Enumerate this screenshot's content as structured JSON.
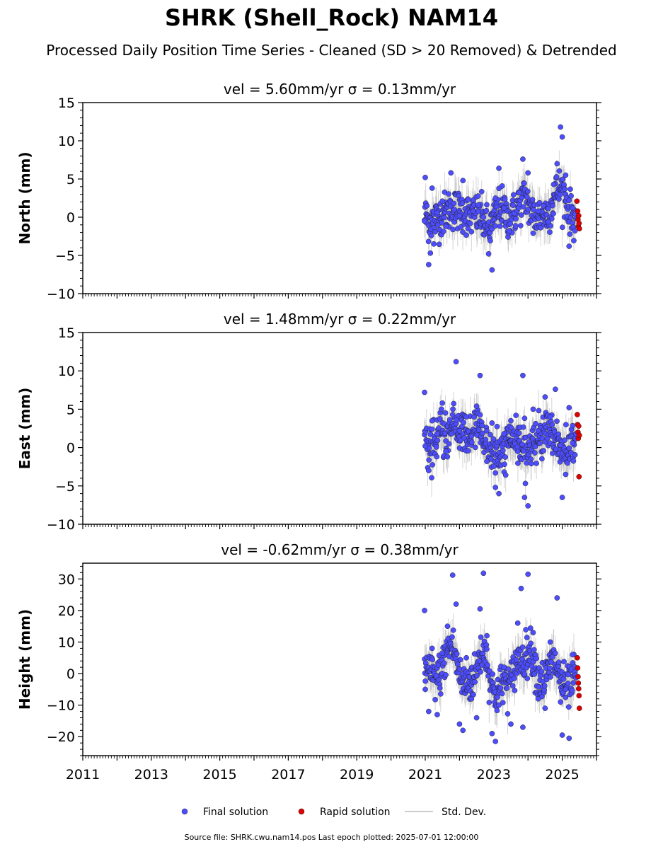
{
  "header": {
    "title": "SHRK (Shell_Rock) NAM14",
    "subtitle": "Processed Daily Position Time Series - Cleaned (SD > 20 Removed) & Detrended"
  },
  "legend": {
    "final": "Final solution",
    "rapid": "Rapid solution",
    "std": "Std. Dev."
  },
  "footer": {
    "text": "Source file: SHRK.cwu.nam14.pos  Last epoch plotted: 2025-07-01 12:00:00"
  },
  "colors": {
    "final": "#4d4dff",
    "rapid": "#e00000",
    "std": "#b0b0b0"
  },
  "chart_data": [
    {
      "type": "scatter",
      "title": "vel = 5.60mm/yr   σ = 0.13mm/yr",
      "ylabel": "North (mm)",
      "xlim": [
        2011,
        2026
      ],
      "ylim": [
        -10,
        15
      ],
      "yticks": [
        -10,
        -5,
        0,
        5,
        10,
        15
      ],
      "yminor": 1,
      "x_major_ticks": [
        2011,
        2013,
        2015,
        2017,
        2019,
        2021,
        2023,
        2025
      ],
      "x_tick_labels_shown": false,
      "series": [
        {
          "name": "Final solution",
          "points": [
            [
              2020.98,
              -0.5
            ],
            [
              2021.0,
              5.2
            ],
            [
              2021.05,
              1.5
            ],
            [
              2021.1,
              -6.2
            ],
            [
              2021.15,
              -4.7
            ],
            [
              2021.2,
              3.8
            ],
            [
              2021.25,
              -3.5
            ],
            [
              2021.35,
              0.6
            ],
            [
              2021.5,
              2.1
            ],
            [
              2021.6,
              -1.2
            ],
            [
              2021.75,
              5.8
            ],
            [
              2021.85,
              1.0
            ],
            [
              2022.0,
              0.2
            ],
            [
              2022.1,
              4.8
            ],
            [
              2022.25,
              -1.5
            ],
            [
              2022.4,
              0.8
            ],
            [
              2022.55,
              1.6
            ],
            [
              2022.7,
              0.0
            ],
            [
              2022.85,
              -4.8
            ],
            [
              2022.95,
              -6.9
            ],
            [
              2023.05,
              2.5
            ],
            [
              2023.15,
              6.4
            ],
            [
              2023.3,
              1.2
            ],
            [
              2023.45,
              -1.8
            ],
            [
              2023.6,
              0.5
            ],
            [
              2023.75,
              3.2
            ],
            [
              2023.85,
              7.6
            ],
            [
              2024.0,
              5.8
            ],
            [
              2024.15,
              -2.1
            ],
            [
              2024.3,
              0.8
            ],
            [
              2024.45,
              1.5
            ],
            [
              2024.6,
              -0.6
            ],
            [
              2024.75,
              4.3
            ],
            [
              2024.85,
              7.0
            ],
            [
              2024.95,
              11.8
            ],
            [
              2025.0,
              10.5
            ],
            [
              2025.1,
              5.5
            ],
            [
              2025.2,
              -3.8
            ],
            [
              2025.3,
              1.2
            ]
          ]
        },
        {
          "name": "Rapid solution",
          "points": [
            [
              2025.43,
              2.1
            ],
            [
              2025.45,
              0.8
            ],
            [
              2025.46,
              -0.3
            ],
            [
              2025.47,
              -1.2
            ],
            [
              2025.48,
              0.2
            ],
            [
              2025.49,
              -0.8
            ],
            [
              2025.5,
              -1.5
            ]
          ]
        }
      ]
    },
    {
      "type": "scatter",
      "title": "vel = 1.48mm/yr   σ = 0.22mm/yr",
      "ylabel": "East (mm)",
      "xlim": [
        2011,
        2026
      ],
      "ylim": [
        -10,
        15
      ],
      "yticks": [
        -10,
        -5,
        0,
        5,
        10,
        15
      ],
      "yminor": 1,
      "x_major_ticks": [
        2011,
        2013,
        2015,
        2017,
        2019,
        2021,
        2023,
        2025
      ],
      "x_tick_labels_shown": false,
      "series": [
        {
          "name": "Final solution",
          "points": [
            [
              2020.98,
              7.2
            ],
            [
              2021.0,
              0.2
            ],
            [
              2021.1,
              -3.0
            ],
            [
              2021.2,
              3.5
            ],
            [
              2021.35,
              1.8
            ],
            [
              2021.5,
              5.8
            ],
            [
              2021.6,
              -0.5
            ],
            [
              2021.8,
              4.3
            ],
            [
              2021.9,
              11.2
            ],
            [
              2022.0,
              2.2
            ],
            [
              2022.2,
              4.0
            ],
            [
              2022.35,
              1.5
            ],
            [
              2022.5,
              5.4
            ],
            [
              2022.6,
              9.4
            ],
            [
              2022.8,
              -1.8
            ],
            [
              2022.95,
              3.2
            ],
            [
              2023.05,
              -5.2
            ],
            [
              2023.15,
              -6.0
            ],
            [
              2023.3,
              1.8
            ],
            [
              2023.5,
              3.5
            ],
            [
              2023.7,
              -0.5
            ],
            [
              2023.85,
              9.4
            ],
            [
              2023.9,
              -6.5
            ],
            [
              2024.0,
              -7.6
            ],
            [
              2024.15,
              5.0
            ],
            [
              2024.3,
              2.2
            ],
            [
              2024.5,
              6.6
            ],
            [
              2024.65,
              4.0
            ],
            [
              2024.8,
              7.6
            ],
            [
              2024.95,
              0.3
            ],
            [
              2025.0,
              -6.5
            ],
            [
              2025.1,
              -3.5
            ],
            [
              2025.2,
              5.2
            ],
            [
              2025.3,
              0.6
            ]
          ]
        },
        {
          "name": "Rapid solution",
          "points": [
            [
              2025.44,
              4.3
            ],
            [
              2025.45,
              3.0
            ],
            [
              2025.46,
              2.0
            ],
            [
              2025.47,
              1.2
            ],
            [
              2025.48,
              2.8
            ],
            [
              2025.49,
              -3.8
            ],
            [
              2025.5,
              1.6
            ]
          ]
        }
      ]
    },
    {
      "type": "scatter",
      "title": "vel = -0.62mm/yr   σ = 0.38mm/yr",
      "ylabel": "Height (mm)",
      "xlim": [
        2011,
        2026
      ],
      "ylim": [
        -26,
        35
      ],
      "yticks": [
        -20,
        -10,
        0,
        10,
        20,
        30
      ],
      "yminor": 2,
      "x_major_ticks": [
        2011,
        2013,
        2015,
        2017,
        2019,
        2021,
        2023,
        2025
      ],
      "x_tick_labels_shown": true,
      "series": [
        {
          "name": "Final solution",
          "points": [
            [
              2020.98,
              20.0
            ],
            [
              2021.0,
              -5.0
            ],
            [
              2021.1,
              -12.0
            ],
            [
              2021.2,
              8.0
            ],
            [
              2021.35,
              -13.0
            ],
            [
              2021.5,
              6.5
            ],
            [
              2021.65,
              15.0
            ],
            [
              2021.8,
              31.2
            ],
            [
              2021.9,
              22.0
            ],
            [
              2022.0,
              -16.0
            ],
            [
              2022.1,
              -18.0
            ],
            [
              2022.2,
              5.0
            ],
            [
              2022.35,
              -8.0
            ],
            [
              2022.5,
              -14.0
            ],
            [
              2022.6,
              20.5
            ],
            [
              2022.7,
              31.8
            ],
            [
              2022.8,
              12.0
            ],
            [
              2022.95,
              -19.0
            ],
            [
              2023.05,
              -21.5
            ],
            [
              2023.15,
              -10.0
            ],
            [
              2023.3,
              2.0
            ],
            [
              2023.5,
              -16.0
            ],
            [
              2023.7,
              16.0
            ],
            [
              2023.8,
              27.0
            ],
            [
              2023.85,
              -17.0
            ],
            [
              2024.0,
              31.5
            ],
            [
              2024.15,
              13.0
            ],
            [
              2024.3,
              -8.0
            ],
            [
              2024.5,
              -11.0
            ],
            [
              2024.65,
              10.0
            ],
            [
              2024.85,
              24.0
            ],
            [
              2024.95,
              -9.0
            ],
            [
              2025.0,
              -19.5
            ],
            [
              2025.1,
              -5.0
            ],
            [
              2025.2,
              -20.5
            ],
            [
              2025.3,
              6.0
            ]
          ]
        },
        {
          "name": "Rapid solution",
          "points": [
            [
              2025.44,
              5.0
            ],
            [
              2025.45,
              1.8
            ],
            [
              2025.46,
              -1.0
            ],
            [
              2025.47,
              -3.0
            ],
            [
              2025.48,
              -4.8
            ],
            [
              2025.49,
              -7.0
            ],
            [
              2025.5,
              -11.0
            ]
          ]
        }
      ]
    }
  ]
}
